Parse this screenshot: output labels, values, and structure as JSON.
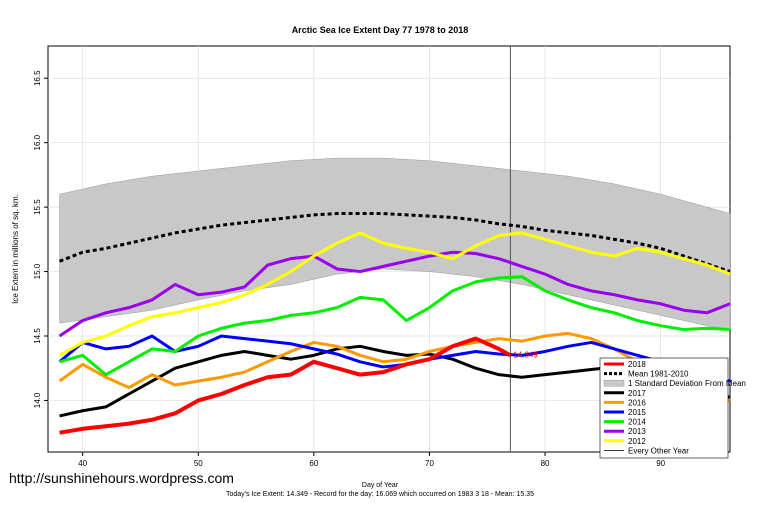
{
  "chart_data": {
    "type": "line",
    "title": "Arctic Sea Ice Extent Day 77 1978 to 2018",
    "xlabel": "Day of Year",
    "ylabel": "Ice Extent in millions of sq. km.",
    "xlim": [
      37,
      96
    ],
    "ylim": [
      13.6,
      16.75
    ],
    "x_ticks": [
      40,
      50,
      60,
      70,
      80,
      90
    ],
    "y_ticks": [
      14.0,
      14.5,
      15.0,
      15.5,
      16.0,
      16.5
    ],
    "y_tick_labels": [
      "14.0",
      "14.5",
      "15.0",
      "15.5",
      "16.0",
      "16.5"
    ],
    "current_day_marker": 77,
    "grid": true,
    "legend_position": "bottom-right",
    "series": [
      {
        "name": "2018",
        "color": "#ff0000",
        "width": 4,
        "x": [
          38,
          40,
          42,
          44,
          46,
          48,
          50,
          52,
          54,
          56,
          58,
          60,
          62,
          64,
          66,
          68,
          70,
          72,
          74,
          76,
          77
        ],
        "values": [
          13.75,
          13.78,
          13.8,
          13.82,
          13.85,
          13.9,
          14.0,
          14.05,
          14.12,
          14.18,
          14.2,
          14.3,
          14.25,
          14.2,
          14.22,
          14.28,
          14.32,
          14.42,
          14.48,
          14.4,
          14.35
        ]
      },
      {
        "name": "Mean 1981-2010",
        "color": "#000000",
        "width": 3,
        "dash": true,
        "x": [
          38,
          40,
          42,
          44,
          46,
          48,
          50,
          52,
          54,
          56,
          58,
          60,
          62,
          64,
          66,
          68,
          70,
          72,
          74,
          76,
          78,
          80,
          82,
          84,
          86,
          88,
          90,
          92,
          94,
          96
        ],
        "values": [
          15.08,
          15.15,
          15.18,
          15.22,
          15.26,
          15.3,
          15.33,
          15.36,
          15.38,
          15.4,
          15.42,
          15.44,
          15.45,
          15.45,
          15.45,
          15.44,
          15.43,
          15.42,
          15.4,
          15.37,
          15.35,
          15.32,
          15.3,
          15.28,
          15.25,
          15.22,
          15.18,
          15.12,
          15.06,
          15.0
        ]
      },
      {
        "name": "2017",
        "color": "#000000",
        "width": 3,
        "x": [
          38,
          40,
          42,
          44,
          46,
          48,
          50,
          52,
          54,
          56,
          58,
          60,
          62,
          64,
          66,
          68,
          70,
          72,
          74,
          76,
          78,
          80,
          82,
          84,
          86,
          88,
          90,
          92,
          94,
          96
        ],
        "values": [
          13.88,
          13.92,
          13.95,
          14.05,
          14.15,
          14.25,
          14.3,
          14.35,
          14.38,
          14.35,
          14.32,
          14.35,
          14.4,
          14.42,
          14.38,
          14.35,
          14.36,
          14.32,
          14.25,
          14.2,
          14.18,
          14.2,
          14.22,
          14.24,
          14.26,
          14.28,
          14.27,
          14.22,
          14.12,
          14.02
        ]
      },
      {
        "name": "2016",
        "color": "#ff9900",
        "width": 3,
        "x": [
          38,
          40,
          42,
          44,
          46,
          48,
          50,
          52,
          54,
          56,
          58,
          60,
          62,
          64,
          66,
          68,
          70,
          72,
          74,
          76,
          78,
          80,
          82,
          84,
          86,
          88,
          90,
          92,
          94,
          96
        ],
        "values": [
          14.15,
          14.28,
          14.18,
          14.1,
          14.2,
          14.12,
          14.15,
          14.18,
          14.22,
          14.3,
          14.38,
          14.45,
          14.42,
          14.35,
          14.3,
          14.32,
          14.38,
          14.42,
          14.45,
          14.48,
          14.46,
          14.5,
          14.52,
          14.48,
          14.4,
          14.3,
          14.2,
          14.12,
          14.06,
          14.0
        ]
      },
      {
        "name": "2015",
        "color": "#0000ff",
        "width": 3,
        "x": [
          38,
          40,
          42,
          44,
          46,
          48,
          50,
          52,
          54,
          56,
          58,
          60,
          62,
          64,
          66,
          68,
          70,
          72,
          74,
          76,
          78,
          80,
          82,
          84,
          86,
          88,
          90,
          92,
          94,
          96
        ],
        "values": [
          14.3,
          14.45,
          14.4,
          14.42,
          14.5,
          14.38,
          14.42,
          14.5,
          14.48,
          14.46,
          14.44,
          14.4,
          14.36,
          14.3,
          14.26,
          14.28,
          14.32,
          14.35,
          14.38,
          14.36,
          14.35,
          14.38,
          14.42,
          14.45,
          14.4,
          14.35,
          14.3,
          14.25,
          14.2,
          14.15
        ]
      },
      {
        "name": "2014",
        "color": "#00ee00",
        "width": 3,
        "x": [
          38,
          40,
          42,
          44,
          46,
          48,
          50,
          52,
          54,
          56,
          58,
          60,
          62,
          64,
          66,
          68,
          70,
          72,
          74,
          76,
          78,
          80,
          82,
          84,
          86,
          88,
          90,
          92,
          94,
          96
        ],
        "values": [
          14.3,
          14.35,
          14.2,
          14.3,
          14.4,
          14.38,
          14.5,
          14.56,
          14.6,
          14.62,
          14.66,
          14.68,
          14.72,
          14.8,
          14.78,
          14.62,
          14.72,
          14.85,
          14.92,
          14.95,
          14.96,
          14.85,
          14.78,
          14.72,
          14.68,
          14.62,
          14.58,
          14.55,
          14.56,
          14.55
        ]
      },
      {
        "name": "2013",
        "color": "#9900ee",
        "width": 3,
        "x": [
          38,
          40,
          42,
          44,
          46,
          48,
          50,
          52,
          54,
          56,
          58,
          60,
          62,
          64,
          66,
          68,
          70,
          72,
          74,
          76,
          78,
          80,
          82,
          84,
          86,
          88,
          90,
          92,
          94,
          96
        ],
        "values": [
          14.5,
          14.62,
          14.68,
          14.72,
          14.78,
          14.9,
          14.82,
          14.84,
          14.88,
          15.05,
          15.1,
          15.12,
          15.02,
          15.0,
          15.04,
          15.08,
          15.12,
          15.15,
          15.14,
          15.1,
          15.04,
          14.98,
          14.9,
          14.85,
          14.82,
          14.78,
          14.75,
          14.7,
          14.68,
          14.75
        ]
      },
      {
        "name": "2012",
        "color": "#ffff00",
        "width": 3,
        "x": [
          38,
          40,
          42,
          44,
          46,
          48,
          50,
          52,
          54,
          56,
          58,
          60,
          62,
          64,
          66,
          68,
          70,
          72,
          74,
          76,
          78,
          80,
          82,
          84,
          86,
          88,
          90,
          92,
          94,
          96
        ],
        "values": [
          14.35,
          14.45,
          14.5,
          14.58,
          14.65,
          14.68,
          14.72,
          14.76,
          14.82,
          14.9,
          15.0,
          15.12,
          15.22,
          15.3,
          15.22,
          15.18,
          15.15,
          15.1,
          15.2,
          15.28,
          15.3,
          15.25,
          15.2,
          15.15,
          15.12,
          15.18,
          15.15,
          15.1,
          15.05,
          14.98
        ]
      }
    ],
    "band": {
      "name": "1 Standard Deviation From Mean",
      "color": "#c8c8c8",
      "x": [
        38,
        42,
        46,
        50,
        54,
        58,
        62,
        66,
        70,
        74,
        78,
        82,
        86,
        90,
        94,
        96
      ],
      "upper": [
        15.6,
        15.68,
        15.74,
        15.78,
        15.82,
        15.86,
        15.88,
        15.88,
        15.86,
        15.82,
        15.78,
        15.74,
        15.68,
        15.6,
        15.5,
        15.45
      ],
      "lower": [
        14.6,
        14.65,
        14.7,
        14.78,
        14.85,
        14.9,
        14.98,
        15.02,
        15.0,
        14.96,
        14.9,
        14.82,
        14.74,
        14.66,
        14.58,
        14.55
      ]
    },
    "legend": [
      {
        "label": "2018",
        "color": "#ff0000",
        "style": "solid"
      },
      {
        "label": "Mean 1981-2010",
        "color": "#000000",
        "style": "dashed"
      },
      {
        "label": "1 Standard Deviation From Mean",
        "color": "#c8c8c8",
        "style": "box"
      },
      {
        "label": "2017",
        "color": "#000000",
        "style": "solid"
      },
      {
        "label": "2016",
        "color": "#ff9900",
        "style": "solid"
      },
      {
        "label": "2015",
        "color": "#0000ff",
        "style": "solid"
      },
      {
        "label": "2014",
        "color": "#00ee00",
        "style": "solid"
      },
      {
        "label": "2013",
        "color": "#9900ee",
        "style": "solid"
      },
      {
        "label": "2012",
        "color": "#ffff00",
        "style": "solid"
      },
      {
        "label": "Every Other Year",
        "color": "#000000",
        "style": "thin"
      }
    ],
    "current_label": "14.349"
  },
  "watermark": "http://sunshinehours.wordpress.com",
  "footer_line1": "Day of Year",
  "footer_line2": "Today's Ice Extent: 14.349  - Record for the day: 16.069 which occurred on 1983 3 18  - Mean: 15.35"
}
